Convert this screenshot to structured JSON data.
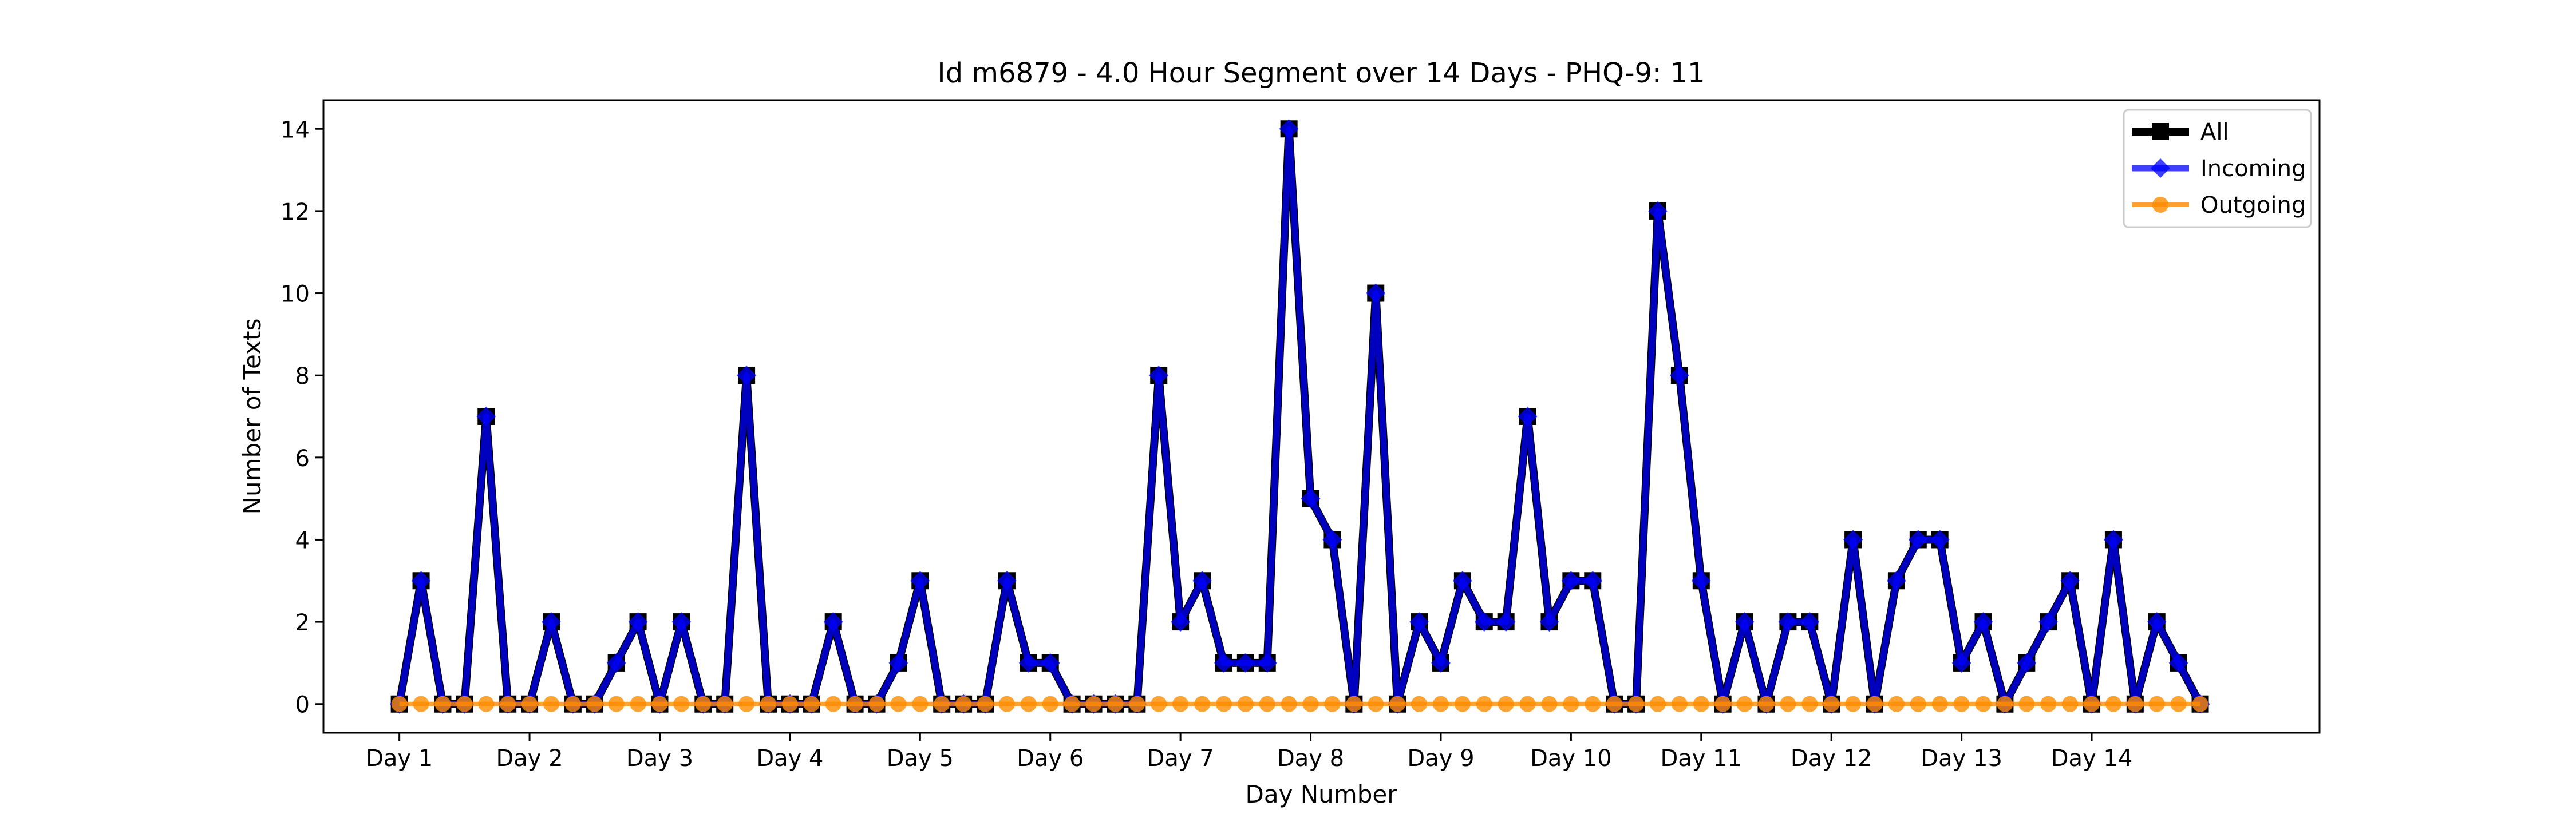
{
  "chart_data": {
    "type": "line",
    "title": "Id m6879 - 4.0 Hour Segment over 14 Days - PHQ-9: 11",
    "xlabel": "Day Number",
    "ylabel": "Number of Texts",
    "xtick_labels": [
      "Day 1",
      "Day 2",
      "Day 3",
      "Day 4",
      "Day 5",
      "Day 6",
      "Day 7",
      "Day 8",
      "Day 9",
      "Day 10",
      "Day 11",
      "Day 12",
      "Day 13",
      "Day 14"
    ],
    "ytick_labels": [
      "0",
      "2",
      "4",
      "6",
      "8",
      "10",
      "12",
      "14"
    ],
    "ylim": [
      -0.7,
      14.7
    ],
    "xlim": [
      -3.5,
      88.5
    ],
    "grid": false,
    "legend_position": "top-right",
    "x": [
      0,
      1,
      2,
      3,
      4,
      5,
      6,
      7,
      8,
      9,
      10,
      11,
      12,
      13,
      14,
      15,
      16,
      17,
      18,
      19,
      20,
      21,
      22,
      23,
      24,
      25,
      26,
      27,
      28,
      29,
      30,
      31,
      32,
      33,
      34,
      35,
      36,
      37,
      38,
      39,
      40,
      41,
      42,
      43,
      44,
      45,
      46,
      47,
      48,
      49,
      50,
      51,
      52,
      53,
      54,
      55,
      56,
      57,
      58,
      59,
      60,
      61,
      62,
      63,
      64,
      65,
      66,
      67,
      68,
      69,
      70,
      71,
      72,
      73,
      74,
      75,
      76,
      77,
      78,
      79,
      80,
      81,
      82,
      83
    ],
    "series": [
      {
        "name": "All",
        "color": "#000000",
        "marker": "square",
        "values": [
          0,
          3,
          0,
          0,
          7,
          0,
          0,
          2,
          0,
          0,
          1,
          2,
          0,
          2,
          0,
          0,
          8,
          0,
          0,
          0,
          2,
          0,
          0,
          1,
          3,
          0,
          0,
          0,
          3,
          1,
          1,
          0,
          0,
          0,
          0,
          8,
          2,
          3,
          1,
          1,
          1,
          14,
          5,
          4,
          0,
          10,
          0,
          2,
          1,
          3,
          2,
          2,
          7,
          2,
          3,
          3,
          0,
          0,
          12,
          8,
          3,
          0,
          2,
          0,
          2,
          2,
          0,
          4,
          0,
          3,
          4,
          4,
          1,
          2,
          0,
          1,
          2,
          3,
          0,
          4,
          0,
          2,
          1,
          0
        ]
      },
      {
        "name": "Incoming",
        "color": "#0000ff",
        "marker": "diamond",
        "values": [
          0,
          3,
          0,
          0,
          7,
          0,
          0,
          2,
          0,
          0,
          1,
          2,
          0,
          2,
          0,
          0,
          8,
          0,
          0,
          0,
          2,
          0,
          0,
          1,
          3,
          0,
          0,
          0,
          3,
          1,
          1,
          0,
          0,
          0,
          0,
          8,
          2,
          3,
          1,
          1,
          1,
          14,
          5,
          4,
          0,
          10,
          0,
          2,
          1,
          3,
          2,
          2,
          7,
          2,
          3,
          3,
          0,
          0,
          12,
          8,
          3,
          0,
          2,
          0,
          2,
          2,
          0,
          4,
          0,
          3,
          4,
          4,
          1,
          2,
          0,
          1,
          2,
          3,
          0,
          4,
          0,
          2,
          1,
          0
        ]
      },
      {
        "name": "Outgoing",
        "color": "#ff8c00",
        "marker": "circle",
        "values": [
          0,
          0,
          0,
          0,
          0,
          0,
          0,
          0,
          0,
          0,
          0,
          0,
          0,
          0,
          0,
          0,
          0,
          0,
          0,
          0,
          0,
          0,
          0,
          0,
          0,
          0,
          0,
          0,
          0,
          0,
          0,
          0,
          0,
          0,
          0,
          0,
          0,
          0,
          0,
          0,
          0,
          0,
          0,
          0,
          0,
          0,
          0,
          0,
          0,
          0,
          0,
          0,
          0,
          0,
          0,
          0,
          0,
          0,
          0,
          0,
          0,
          0,
          0,
          0,
          0,
          0,
          0,
          0,
          0,
          0,
          0,
          0,
          0,
          0,
          0,
          0,
          0,
          0,
          0,
          0,
          0,
          0,
          0,
          0
        ]
      }
    ]
  }
}
